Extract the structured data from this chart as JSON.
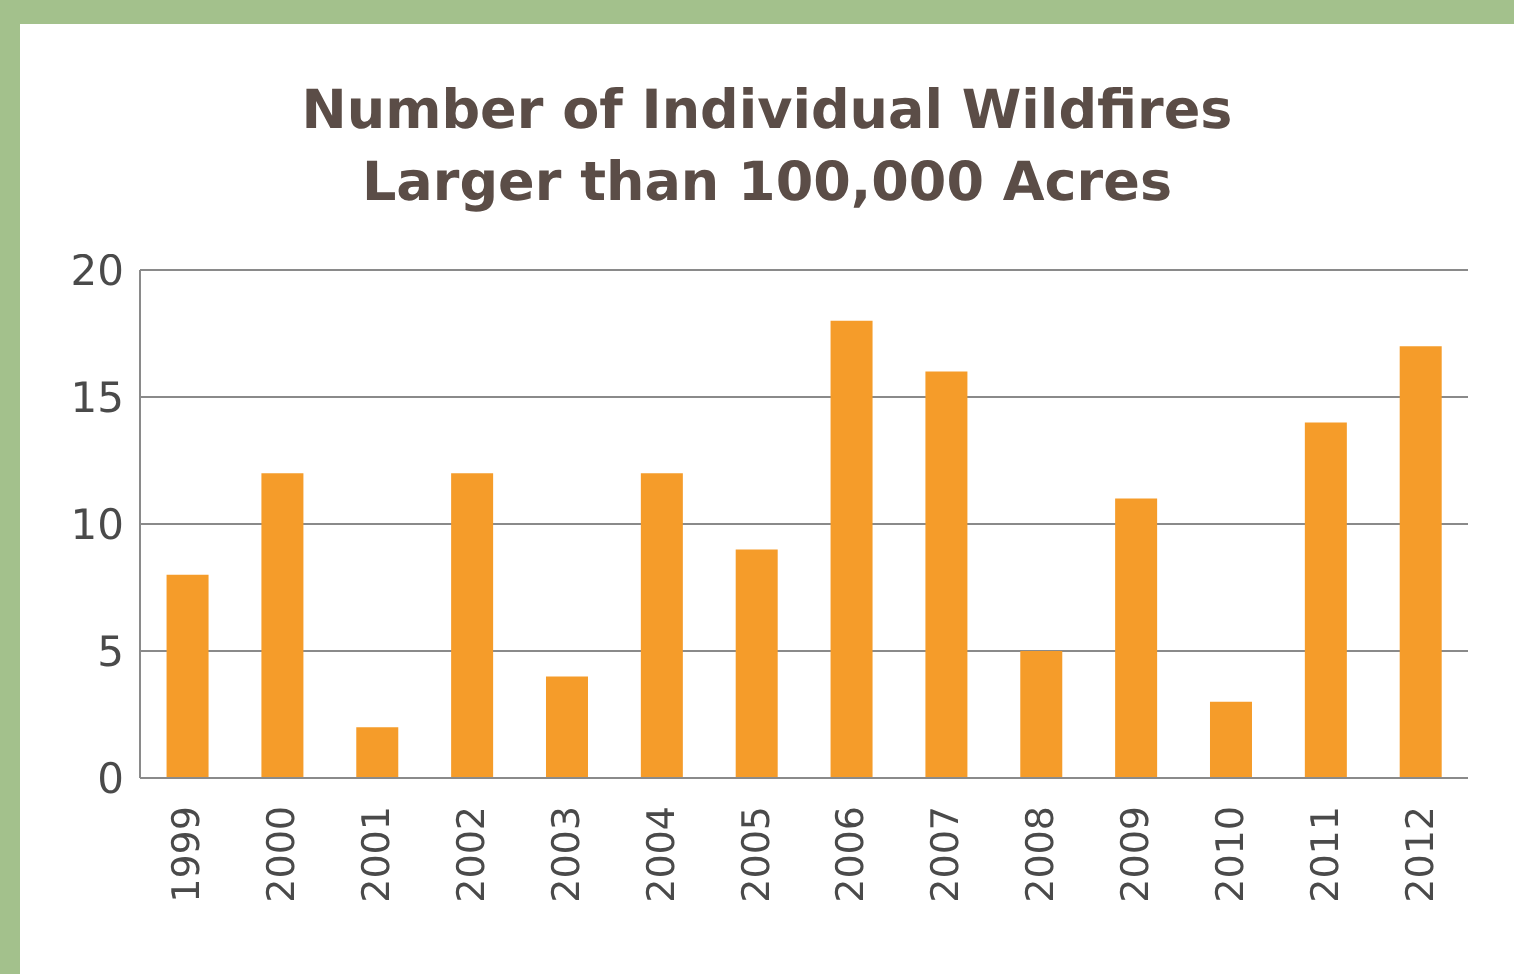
{
  "chart_data": {
    "type": "bar",
    "title": "Number of Individual Wildfires\nLarger than 100,000 Acres",
    "categories": [
      "1999",
      "2000",
      "2001",
      "2002",
      "2003",
      "2004",
      "2005",
      "2006",
      "2007",
      "2008",
      "2009",
      "2010",
      "2011",
      "2012"
    ],
    "values": [
      8,
      12,
      2,
      12,
      4,
      12,
      9,
      18,
      16,
      5,
      11,
      3,
      14,
      17
    ],
    "color": "#f59c2a",
    "ylim": [
      0,
      20
    ],
    "yticks": [
      0,
      5,
      10,
      15,
      20
    ],
    "grid": "y"
  }
}
